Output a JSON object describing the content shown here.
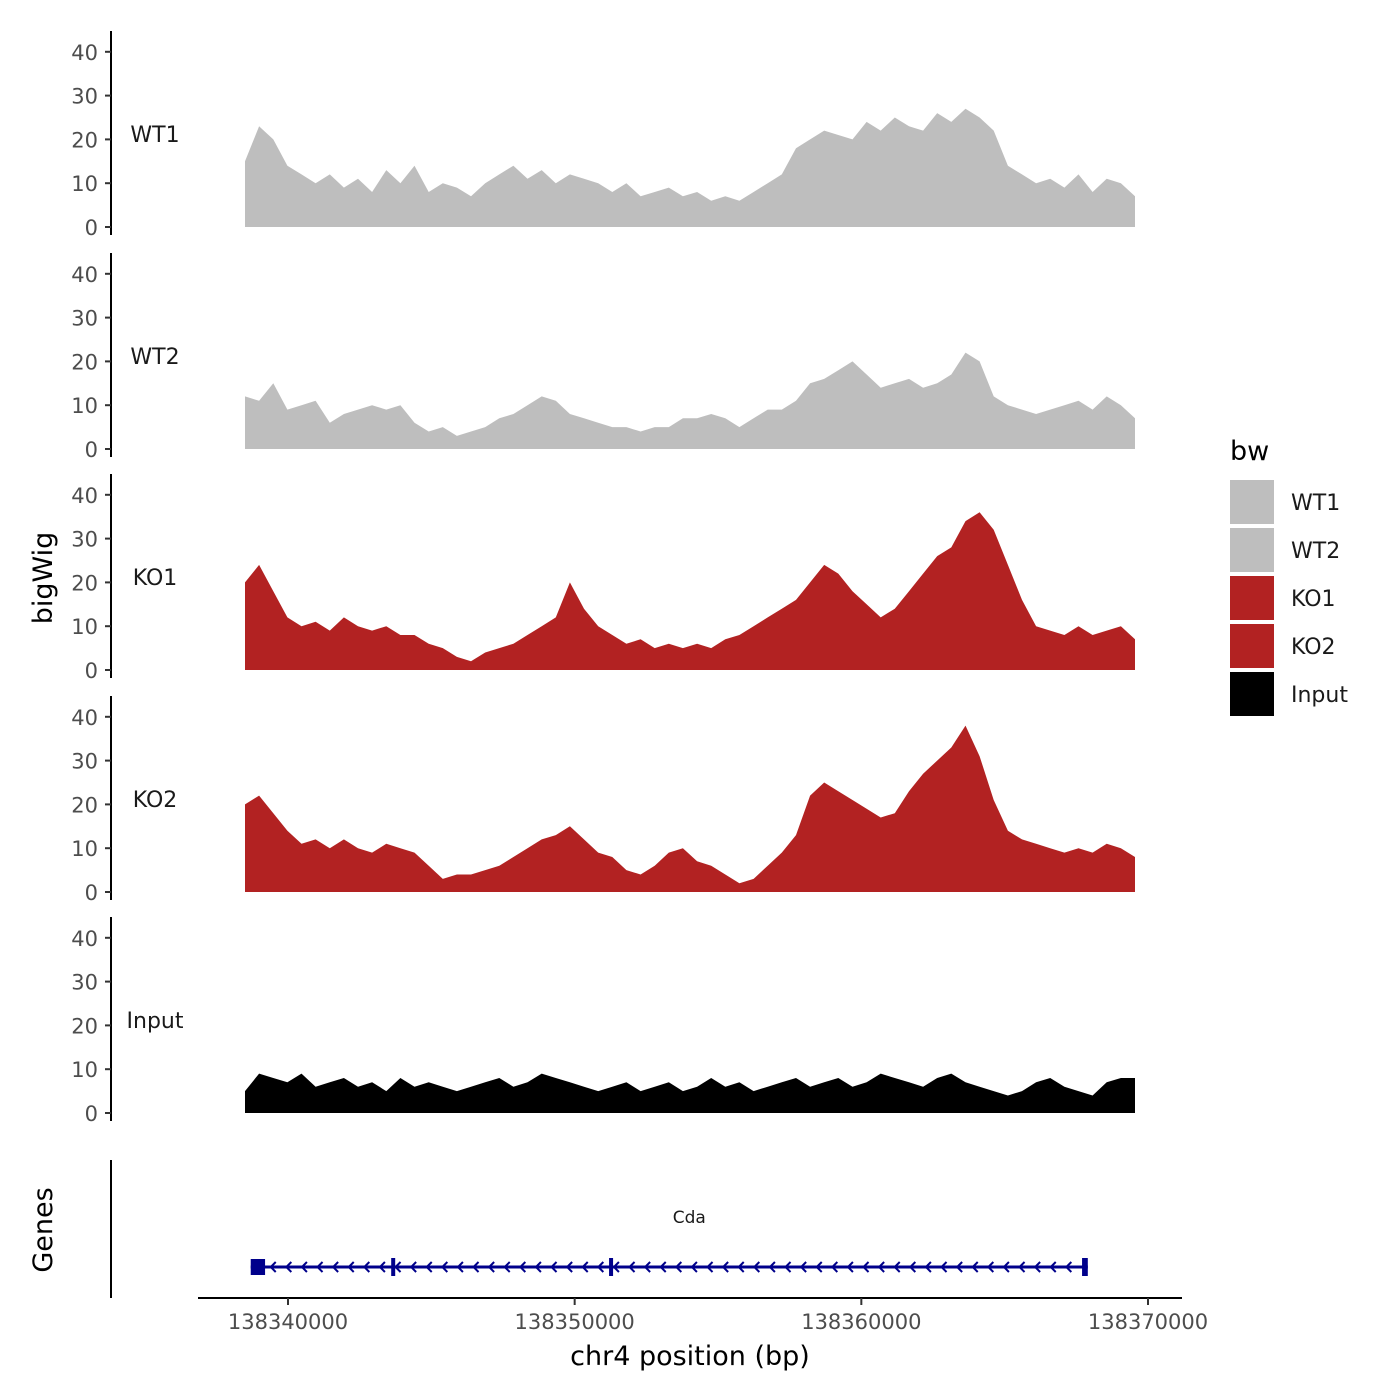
{
  "chart_data": {
    "type": "area",
    "region": {
      "chrom": "chr4",
      "start": 138338500,
      "end": 138370000
    },
    "xlabel": "chr4 position (bp)",
    "ylabel": "bigWig",
    "ylim": [
      0,
      45
    ],
    "y_ticks": [
      0,
      10,
      20,
      30,
      40
    ],
    "x_ticks": [
      138340000,
      138350000,
      138360000,
      138370000
    ],
    "x_tick_labels": [
      "138340000",
      "138350000",
      "138360000",
      "138370000"
    ],
    "legend_title": "bw",
    "x": [
      138338500,
      138339000,
      138339500,
      138340000,
      138340500,
      138341000,
      138341500,
      138342000,
      138342500,
      138343000,
      138343500,
      138344000,
      138344500,
      138345000,
      138345500,
      138346000,
      138346500,
      138347000,
      138347500,
      138348000,
      138348500,
      138349000,
      138349500,
      138350000,
      138350500,
      138351000,
      138351500,
      138352000,
      138352500,
      138353000,
      138353500,
      138354000,
      138354500,
      138355000,
      138355500,
      138356000,
      138356500,
      138357000,
      138357500,
      138358000,
      138358500,
      138359000,
      138359500,
      138360000,
      138360500,
      138361000,
      138361500,
      138362000,
      138362500,
      138363000,
      138363500,
      138364000,
      138364500,
      138365000,
      138365500,
      138366000,
      138366500,
      138367000,
      138367500,
      138368000,
      138368500,
      138369000,
      138369500,
      138370000
    ],
    "series": [
      {
        "name": "WT1",
        "color": "#bebebe",
        "values": [
          15,
          23,
          20,
          14,
          12,
          10,
          12,
          9,
          11,
          8,
          13,
          10,
          14,
          8,
          10,
          9,
          7,
          10,
          12,
          14,
          11,
          13,
          10,
          12,
          11,
          10,
          8,
          10,
          7,
          8,
          9,
          7,
          8,
          6,
          7,
          6,
          8,
          10,
          12,
          18,
          20,
          22,
          21,
          20,
          24,
          22,
          25,
          23,
          22,
          26,
          24,
          27,
          25,
          22,
          14,
          12,
          10,
          11,
          9,
          12,
          8,
          11,
          10,
          7
        ],
        "label": "WT1"
      },
      {
        "name": "WT2",
        "color": "#bebebe",
        "values": [
          12,
          11,
          15,
          9,
          10,
          11,
          6,
          8,
          9,
          10,
          9,
          10,
          6,
          4,
          5,
          3,
          4,
          5,
          7,
          8,
          10,
          12,
          11,
          8,
          7,
          6,
          5,
          5,
          4,
          5,
          5,
          7,
          7,
          8,
          7,
          5,
          7,
          9,
          9,
          11,
          15,
          16,
          18,
          20,
          17,
          14,
          15,
          16,
          14,
          15,
          17,
          22,
          20,
          12,
          10,
          9,
          8,
          9,
          10,
          11,
          9,
          12,
          10,
          7
        ],
        "label": "WT2"
      },
      {
        "name": "KO1",
        "color": "#b22222",
        "values": [
          20,
          24,
          18,
          12,
          10,
          11,
          9,
          12,
          10,
          9,
          10,
          8,
          8,
          6,
          5,
          3,
          2,
          4,
          5,
          6,
          8,
          10,
          12,
          20,
          14,
          10,
          8,
          6,
          7,
          5,
          6,
          5,
          6,
          5,
          7,
          8,
          10,
          12,
          14,
          16,
          20,
          24,
          22,
          18,
          15,
          12,
          14,
          18,
          22,
          26,
          28,
          34,
          36,
          32,
          24,
          16,
          10,
          9,
          8,
          10,
          8,
          9,
          10,
          7
        ],
        "label": "KO1"
      },
      {
        "name": "KO2",
        "color": "#b22222",
        "values": [
          20,
          22,
          18,
          14,
          11,
          12,
          10,
          12,
          10,
          9,
          11,
          10,
          9,
          6,
          3,
          4,
          4,
          5,
          6,
          8,
          10,
          12,
          13,
          15,
          12,
          9,
          8,
          5,
          4,
          6,
          9,
          10,
          7,
          6,
          4,
          2,
          3,
          6,
          9,
          13,
          22,
          25,
          23,
          21,
          19,
          17,
          18,
          23,
          27,
          30,
          33,
          38,
          31,
          21,
          14,
          12,
          11,
          10,
          9,
          10,
          9,
          11,
          10,
          8
        ],
        "label": "KO2"
      },
      {
        "name": "Input",
        "color": "#000000",
        "values": [
          5,
          9,
          8,
          7,
          9,
          6,
          7,
          8,
          6,
          7,
          5,
          8,
          6,
          7,
          6,
          5,
          6,
          7,
          8,
          6,
          7,
          9,
          8,
          7,
          6,
          5,
          6,
          7,
          5,
          6,
          7,
          5,
          6,
          8,
          6,
          7,
          5,
          6,
          7,
          8,
          6,
          7,
          8,
          6,
          7,
          9,
          8,
          7,
          6,
          8,
          9,
          7,
          6,
          5,
          4,
          5,
          7,
          8,
          6,
          5,
          4,
          7,
          8,
          8
        ],
        "label": "Input"
      }
    ],
    "genes": {
      "panel_label": "Genes",
      "items": [
        {
          "name": "Cda",
          "start": 138338700,
          "end": 138367900,
          "strand": "-",
          "color": "#00008b",
          "exons": [
            [
              138338700,
              138339200
            ],
            [
              138343600,
              138343700
            ],
            [
              138351200,
              138351300
            ],
            [
              138367700,
              138367900
            ]
          ]
        }
      ]
    }
  }
}
